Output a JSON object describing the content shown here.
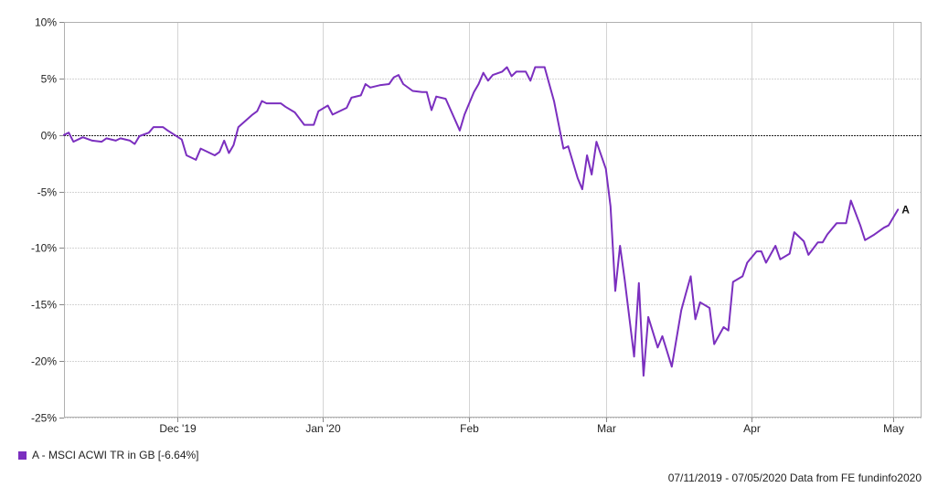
{
  "chart_data": {
    "type": "line",
    "y_axis": {
      "min": -25,
      "max": 10,
      "step": 5,
      "ticks": [
        10,
        5,
        0,
        -5,
        -10,
        -15,
        -20,
        -25
      ],
      "tick_labels": [
        "10%",
        "5%",
        "0%",
        "-5%",
        "-10%",
        "-15%",
        "-20%",
        "-25%"
      ]
    },
    "x_axis": {
      "start": "2019-11-07",
      "end": "2020-05-07",
      "ticks": [
        {
          "date": "2019-12-01",
          "label": "Dec '19"
        },
        {
          "date": "2020-01-01",
          "label": "Jan '20"
        },
        {
          "date": "2020-02-01",
          "label": "Feb"
        },
        {
          "date": "2020-03-01",
          "label": "Mar"
        },
        {
          "date": "2020-04-01",
          "label": "Apr"
        },
        {
          "date": "2020-05-01",
          "label": "May"
        }
      ]
    },
    "grid": true,
    "zero_line": true,
    "series": [
      {
        "name": "A - MSCI ACWI TR in GB [-6.64%]",
        "end_label": "A",
        "color": "#7b2fbf",
        "points": [
          [
            "2019-11-07",
            0.0
          ],
          [
            "2019-11-08",
            0.2
          ],
          [
            "2019-11-09",
            -0.6
          ],
          [
            "2019-11-11",
            -0.2
          ],
          [
            "2019-11-13",
            -0.5
          ],
          [
            "2019-11-15",
            -0.6
          ],
          [
            "2019-11-16",
            -0.3
          ],
          [
            "2019-11-18",
            -0.5
          ],
          [
            "2019-11-19",
            -0.3
          ],
          [
            "2019-11-21",
            -0.5
          ],
          [
            "2019-11-22",
            -0.8
          ],
          [
            "2019-11-23",
            -0.1
          ],
          [
            "2019-11-25",
            0.2
          ],
          [
            "2019-11-26",
            0.7
          ],
          [
            "2019-11-28",
            0.7
          ],
          [
            "2019-11-29",
            0.4
          ],
          [
            "2019-12-02",
            -0.4
          ],
          [
            "2019-12-03",
            -1.8
          ],
          [
            "2019-12-05",
            -2.2
          ],
          [
            "2019-12-06",
            -1.2
          ],
          [
            "2019-12-09",
            -1.8
          ],
          [
            "2019-12-10",
            -1.5
          ],
          [
            "2019-12-11",
            -0.5
          ],
          [
            "2019-12-12",
            -1.6
          ],
          [
            "2019-12-13",
            -0.9
          ],
          [
            "2019-12-14",
            0.7
          ],
          [
            "2019-12-17",
            1.8
          ],
          [
            "2019-12-18",
            2.1
          ],
          [
            "2019-12-19",
            3.0
          ],
          [
            "2019-12-20",
            2.8
          ],
          [
            "2019-12-23",
            2.8
          ],
          [
            "2019-12-24",
            2.5
          ],
          [
            "2019-12-26",
            2.0
          ],
          [
            "2019-12-28",
            0.9
          ],
          [
            "2019-12-30",
            0.9
          ],
          [
            "2019-12-31",
            2.1
          ],
          [
            "2020-01-02",
            2.6
          ],
          [
            "2020-01-03",
            1.8
          ],
          [
            "2020-01-06",
            2.4
          ],
          [
            "2020-01-07",
            3.3
          ],
          [
            "2020-01-09",
            3.5
          ],
          [
            "2020-01-10",
            4.5
          ],
          [
            "2020-01-11",
            4.2
          ],
          [
            "2020-01-13",
            4.4
          ],
          [
            "2020-01-15",
            4.5
          ],
          [
            "2020-01-16",
            5.1
          ],
          [
            "2020-01-17",
            5.3
          ],
          [
            "2020-01-18",
            4.5
          ],
          [
            "2020-01-20",
            3.9
          ],
          [
            "2020-01-22",
            3.8
          ],
          [
            "2020-01-23",
            3.8
          ],
          [
            "2020-01-24",
            2.2
          ],
          [
            "2020-01-25",
            3.4
          ],
          [
            "2020-01-27",
            3.2
          ],
          [
            "2020-01-30",
            0.4
          ],
          [
            "2020-01-31",
            1.8
          ],
          [
            "2020-02-02",
            3.8
          ],
          [
            "2020-02-03",
            4.5
          ],
          [
            "2020-02-04",
            5.5
          ],
          [
            "2020-02-05",
            4.8
          ],
          [
            "2020-02-06",
            5.3
          ],
          [
            "2020-02-08",
            5.6
          ],
          [
            "2020-02-09",
            6.0
          ],
          [
            "2020-02-10",
            5.2
          ],
          [
            "2020-02-11",
            5.6
          ],
          [
            "2020-02-13",
            5.6
          ],
          [
            "2020-02-14",
            4.8
          ],
          [
            "2020-02-15",
            6.0
          ],
          [
            "2020-02-17",
            6.0
          ],
          [
            "2020-02-18",
            4.5
          ],
          [
            "2020-02-19",
            3.0
          ],
          [
            "2020-02-21",
            -1.2
          ],
          [
            "2020-02-22",
            -1.0
          ],
          [
            "2020-02-24",
            -3.8
          ],
          [
            "2020-02-25",
            -4.8
          ],
          [
            "2020-02-26",
            -1.8
          ],
          [
            "2020-02-27",
            -3.5
          ],
          [
            "2020-02-28",
            -0.6
          ],
          [
            "2020-03-01",
            -3.0
          ],
          [
            "2020-03-02",
            -6.3
          ],
          [
            "2020-03-03",
            -13.8
          ],
          [
            "2020-03-04",
            -9.8
          ],
          [
            "2020-03-05",
            -12.8
          ],
          [
            "2020-03-07",
            -19.6
          ],
          [
            "2020-03-08",
            -13.1
          ],
          [
            "2020-03-09",
            -21.3
          ],
          [
            "2020-03-10",
            -16.1
          ],
          [
            "2020-03-12",
            -18.8
          ],
          [
            "2020-03-13",
            -17.8
          ],
          [
            "2020-03-15",
            -20.5
          ],
          [
            "2020-03-17",
            -15.5
          ],
          [
            "2020-03-18",
            -14.0
          ],
          [
            "2020-03-19",
            -12.5
          ],
          [
            "2020-03-20",
            -16.3
          ],
          [
            "2020-03-21",
            -14.8
          ],
          [
            "2020-03-23",
            -15.3
          ],
          [
            "2020-03-24",
            -18.5
          ],
          [
            "2020-03-26",
            -17.0
          ],
          [
            "2020-03-27",
            -17.3
          ],
          [
            "2020-03-28",
            -13.0
          ],
          [
            "2020-03-30",
            -12.5
          ],
          [
            "2020-03-31",
            -11.3
          ],
          [
            "2020-04-02",
            -10.3
          ],
          [
            "2020-04-03",
            -10.3
          ],
          [
            "2020-04-04",
            -11.3
          ],
          [
            "2020-04-06",
            -9.8
          ],
          [
            "2020-04-07",
            -11.0
          ],
          [
            "2020-04-09",
            -10.5
          ],
          [
            "2020-04-10",
            -8.6
          ],
          [
            "2020-04-12",
            -9.4
          ],
          [
            "2020-04-13",
            -10.6
          ],
          [
            "2020-04-15",
            -9.5
          ],
          [
            "2020-04-16",
            -9.5
          ],
          [
            "2020-04-17",
            -8.8
          ],
          [
            "2020-04-19",
            -7.8
          ],
          [
            "2020-04-21",
            -7.8
          ],
          [
            "2020-04-22",
            -5.8
          ],
          [
            "2020-04-24",
            -8.0
          ],
          [
            "2020-04-25",
            -9.3
          ],
          [
            "2020-04-27",
            -8.8
          ],
          [
            "2020-04-29",
            -8.2
          ],
          [
            "2020-04-30",
            -8.0
          ],
          [
            "2020-05-02",
            -6.6
          ]
        ]
      }
    ]
  },
  "legend": {
    "label": "A - MSCI ACWI TR in GB [-6.64%]",
    "color": "#7b2fbf"
  },
  "footer": {
    "text": "07/11/2019 - 07/05/2020 Data from FE fundinfo2020"
  }
}
